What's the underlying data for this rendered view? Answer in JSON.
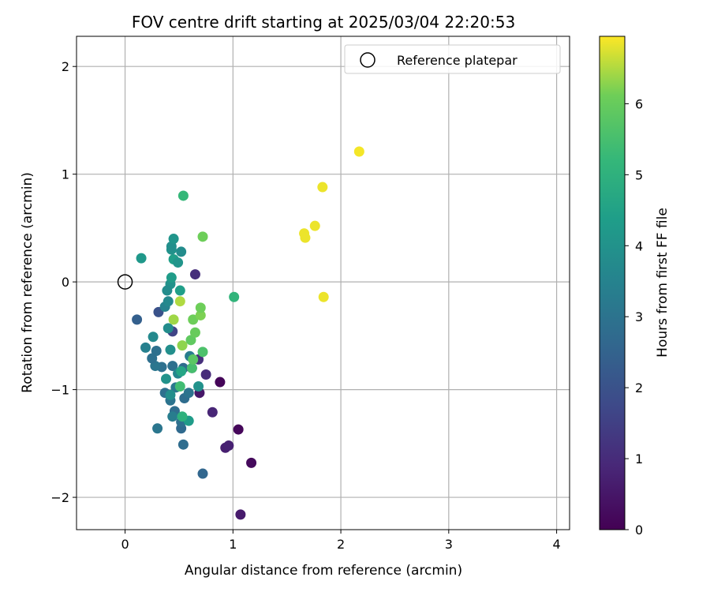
{
  "chart_data": {
    "type": "scatter",
    "title": "FOV centre drift starting at 2025/03/04 22:20:53",
    "xlabel": "Angular distance from reference (arcmin)",
    "ylabel": "Rotation from reference (arcmin)",
    "xlim": [
      -0.45,
      4.12
    ],
    "ylim": [
      -2.3,
      2.28
    ],
    "xticks": [
      0,
      1,
      2,
      3,
      4
    ],
    "yticks": [
      -2,
      -1,
      0,
      1,
      2
    ],
    "grid": true,
    "legend": {
      "placement": "top-right",
      "entries": [
        "Reference platepar"
      ]
    },
    "reference_point": {
      "x": 0,
      "y": 0,
      "label": "Reference platepar"
    },
    "colorbar": {
      "label": "Hours from first FF file",
      "colormap": "viridis",
      "range": [
        0,
        6.95
      ],
      "ticks": [
        0,
        1,
        2,
        3,
        4,
        5,
        6
      ]
    },
    "points": [
      {
        "x": 0.88,
        "y": -0.93,
        "h": 0.1
      },
      {
        "x": 1.05,
        "y": -1.37,
        "h": 0.15
      },
      {
        "x": 1.17,
        "y": -1.68,
        "h": 0.2
      },
      {
        "x": 1.07,
        "y": -2.16,
        "h": 0.6
      },
      {
        "x": 0.93,
        "y": -1.54,
        "h": 0.7
      },
      {
        "x": 0.96,
        "y": -1.52,
        "h": 0.75
      },
      {
        "x": 0.69,
        "y": -1.03,
        "h": 0.5
      },
      {
        "x": 0.81,
        "y": -1.21,
        "h": 0.85
      },
      {
        "x": 0.75,
        "y": -0.86,
        "h": 1.0
      },
      {
        "x": 0.65,
        "y": 0.07,
        "h": 1.05
      },
      {
        "x": 0.68,
        "y": -0.72,
        "h": 1.1
      },
      {
        "x": 0.62,
        "y": -0.8,
        "h": 1.2
      },
      {
        "x": 0.44,
        "y": -0.46,
        "h": 1.6
      },
      {
        "x": 0.31,
        "y": -0.28,
        "h": 2.0
      },
      {
        "x": 0.11,
        "y": -0.35,
        "h": 2.4
      },
      {
        "x": 0.72,
        "y": -1.78,
        "h": 2.6
      },
      {
        "x": 0.54,
        "y": -1.51,
        "h": 2.8
      },
      {
        "x": 0.52,
        "y": -1.36,
        "h": 2.7
      },
      {
        "x": 0.52,
        "y": -1.3,
        "h": 2.9
      },
      {
        "x": 0.46,
        "y": -1.2,
        "h": 2.8
      },
      {
        "x": 0.44,
        "y": -1.25,
        "h": 3.3
      },
      {
        "x": 0.3,
        "y": -1.36,
        "h": 3.1
      },
      {
        "x": 0.37,
        "y": -1.03,
        "h": 2.9
      },
      {
        "x": 0.42,
        "y": -1.1,
        "h": 3.0
      },
      {
        "x": 0.47,
        "y": -0.98,
        "h": 3.2
      },
      {
        "x": 0.55,
        "y": -1.08,
        "h": 2.8
      },
      {
        "x": 0.59,
        "y": -1.03,
        "h": 3.0
      },
      {
        "x": 0.54,
        "y": -0.8,
        "h": 2.8
      },
      {
        "x": 0.44,
        "y": -0.78,
        "h": 2.9
      },
      {
        "x": 0.34,
        "y": -0.79,
        "h": 2.9
      },
      {
        "x": 0.28,
        "y": -0.78,
        "h": 3.1
      },
      {
        "x": 0.25,
        "y": -0.71,
        "h": 2.9
      },
      {
        "x": 0.29,
        "y": -0.64,
        "h": 2.9
      },
      {
        "x": 0.19,
        "y": -0.61,
        "h": 3.4
      },
      {
        "x": 0.26,
        "y": -0.51,
        "h": 3.7
      },
      {
        "x": 0.37,
        "y": -0.23,
        "h": 3.5
      },
      {
        "x": 0.4,
        "y": -0.18,
        "h": 3.7
      },
      {
        "x": 0.4,
        "y": -0.43,
        "h": 3.8
      },
      {
        "x": 0.42,
        "y": -0.63,
        "h": 3.9
      },
      {
        "x": 0.49,
        "y": -0.85,
        "h": 3.6
      },
      {
        "x": 0.6,
        "y": -0.69,
        "h": 3.3
      },
      {
        "x": 0.38,
        "y": -0.9,
        "h": 4.0
      },
      {
        "x": 0.42,
        "y": -1.05,
        "h": 3.9
      },
      {
        "x": 0.68,
        "y": -0.97,
        "h": 4.0
      },
      {
        "x": 0.59,
        "y": -1.29,
        "h": 4.3
      },
      {
        "x": 0.42,
        "y": -0.02,
        "h": 4.0
      },
      {
        "x": 0.39,
        "y": -0.08,
        "h": 3.8
      },
      {
        "x": 0.43,
        "y": 0.04,
        "h": 4.3
      },
      {
        "x": 0.51,
        "y": -0.08,
        "h": 4.4
      },
      {
        "x": 0.45,
        "y": 0.21,
        "h": 4.4
      },
      {
        "x": 0.49,
        "y": 0.18,
        "h": 4.1
      },
      {
        "x": 0.43,
        "y": 0.3,
        "h": 4.0
      },
      {
        "x": 0.43,
        "y": 0.33,
        "h": 3.9
      },
      {
        "x": 0.52,
        "y": 0.28,
        "h": 3.8
      },
      {
        "x": 0.45,
        "y": 0.4,
        "h": 4.1
      },
      {
        "x": 0.15,
        "y": 0.22,
        "h": 4.2
      },
      {
        "x": 0.52,
        "y": -0.83,
        "h": 4.6
      },
      {
        "x": 0.54,
        "y": 0.8,
        "h": 5.2
      },
      {
        "x": 1.01,
        "y": -0.14,
        "h": 5.1
      },
      {
        "x": 0.53,
        "y": -1.25,
        "h": 5.0
      },
      {
        "x": 0.51,
        "y": -0.97,
        "h": 5.4
      },
      {
        "x": 0.62,
        "y": -0.8,
        "h": 5.5
      },
      {
        "x": 0.63,
        "y": -0.72,
        "h": 5.8
      },
      {
        "x": 0.72,
        "y": -0.65,
        "h": 5.6
      },
      {
        "x": 0.61,
        "y": -0.54,
        "h": 5.9
      },
      {
        "x": 0.65,
        "y": -0.47,
        "h": 6.0
      },
      {
        "x": 0.63,
        "y": -0.35,
        "h": 6.1
      },
      {
        "x": 0.7,
        "y": -0.31,
        "h": 6.2
      },
      {
        "x": 0.7,
        "y": -0.24,
        "h": 6.1
      },
      {
        "x": 0.72,
        "y": 0.42,
        "h": 6.1
      },
      {
        "x": 0.53,
        "y": -0.59,
        "h": 6.3
      },
      {
        "x": 0.51,
        "y": -0.18,
        "h": 6.5
      },
      {
        "x": 0.45,
        "y": -0.35,
        "h": 6.4
      },
      {
        "x": 1.66,
        "y": 0.45,
        "h": 6.85
      },
      {
        "x": 1.67,
        "y": 0.41,
        "h": 6.85
      },
      {
        "x": 1.76,
        "y": 0.52,
        "h": 6.85
      },
      {
        "x": 1.83,
        "y": 0.88,
        "h": 6.85
      },
      {
        "x": 1.84,
        "y": -0.14,
        "h": 6.85
      },
      {
        "x": 2.17,
        "y": 1.21,
        "h": 6.9
      }
    ]
  }
}
